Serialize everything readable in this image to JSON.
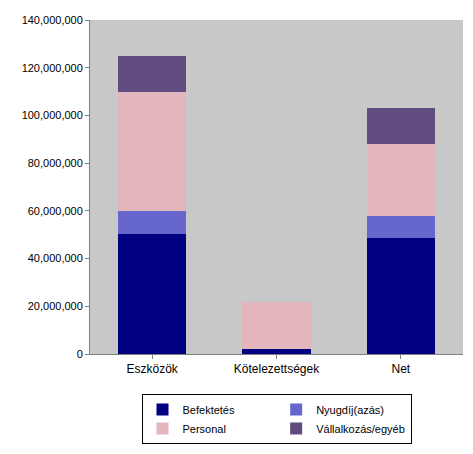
{
  "chart_data": {
    "type": "bar",
    "stacked": true,
    "categories": [
      "Eszközök",
      "Kötelezettségek",
      "Net"
    ],
    "series": [
      {
        "name": "Befektetés",
        "color": "#000080",
        "values": [
          50500000,
          2000000,
          48500000
        ]
      },
      {
        "name": "Nyugdíj(azás)",
        "color": "#6666CC",
        "values": [
          9500000,
          0,
          9500000
        ]
      },
      {
        "name": "Personal",
        "color": "#E3B6BE",
        "values": [
          50000000,
          20000000,
          30000000
        ]
      },
      {
        "name": "Vállalkozás/egyéb",
        "color": "#604C7E",
        "values": [
          15000000,
          0,
          15000000
        ]
      }
    ],
    "ylim": [
      0,
      140000000
    ],
    "yticks": [
      0,
      {
        "value": 20000000,
        "label": "20,000,000"
      },
      {
        "value": 40000000,
        "label": "40,000,000"
      },
      {
        "value": 60000000,
        "label": "60,000,000"
      },
      {
        "value": 80000000,
        "label": "80,000,000"
      },
      {
        "value": 100000000,
        "label": "100,000,000"
      },
      {
        "value": 120000000,
        "label": "120,000,000"
      },
      {
        "value": 140000000,
        "label": "140,000,000"
      }
    ],
    "grid": false,
    "legend": "bottom"
  }
}
